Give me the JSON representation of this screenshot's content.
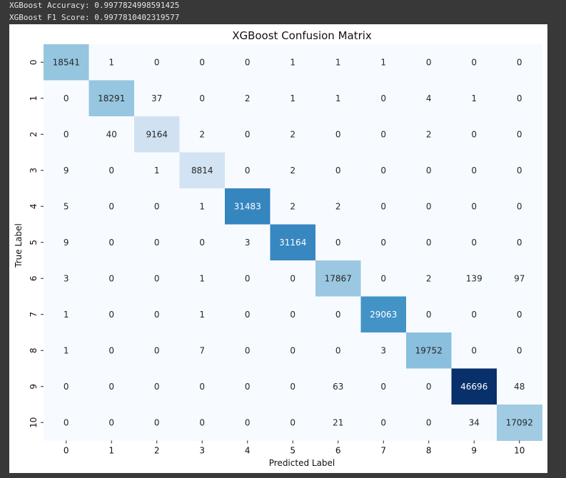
{
  "output": {
    "line1": "XGBoost Accuracy: 0.9977824998591425",
    "line2": "XGBoost F1 Score: 0.9977810402319577"
  },
  "colors": {
    "background": "#383838",
    "figure": "#ffffff",
    "colormap": [
      "#f7fbff",
      "#deebf7",
      "#c6dbef",
      "#9ecae1",
      "#6baed6",
      "#4292c6",
      "#2171b5",
      "#08519c",
      "#08306b"
    ]
  },
  "chart_data": {
    "type": "heatmap",
    "title": "XGBoost Confusion Matrix",
    "xlabel": "Predicted Label",
    "ylabel": "True Label",
    "x_ticks": [
      "0",
      "1",
      "2",
      "3",
      "4",
      "5",
      "6",
      "7",
      "8",
      "9",
      "10"
    ],
    "y_ticks": [
      "0",
      "1",
      "2",
      "3",
      "4",
      "5",
      "6",
      "7",
      "8",
      "9",
      "10"
    ],
    "colorbar": false,
    "cmap": "Blues",
    "matrix": [
      [
        18541,
        1,
        0,
        0,
        0,
        1,
        1,
        1,
        0,
        0,
        0
      ],
      [
        0,
        18291,
        37,
        0,
        2,
        1,
        1,
        0,
        4,
        1,
        0
      ],
      [
        0,
        40,
        9164,
        2,
        0,
        2,
        0,
        0,
        2,
        0,
        0
      ],
      [
        9,
        0,
        1,
        8814,
        0,
        2,
        0,
        0,
        0,
        0,
        0
      ],
      [
        5,
        0,
        0,
        1,
        31483,
        2,
        2,
        0,
        0,
        0,
        0
      ],
      [
        9,
        0,
        0,
        0,
        3,
        31164,
        0,
        0,
        0,
        0,
        0
      ],
      [
        3,
        0,
        0,
        1,
        0,
        0,
        17867,
        0,
        2,
        139,
        97
      ],
      [
        1,
        0,
        0,
        1,
        0,
        0,
        0,
        29063,
        0,
        0,
        0
      ],
      [
        1,
        0,
        0,
        7,
        0,
        0,
        0,
        3,
        19752,
        0,
        0
      ],
      [
        0,
        0,
        0,
        0,
        0,
        0,
        63,
        0,
        0,
        46696,
        48
      ],
      [
        0,
        0,
        0,
        0,
        0,
        0,
        21,
        0,
        0,
        34,
        17092
      ]
    ]
  }
}
